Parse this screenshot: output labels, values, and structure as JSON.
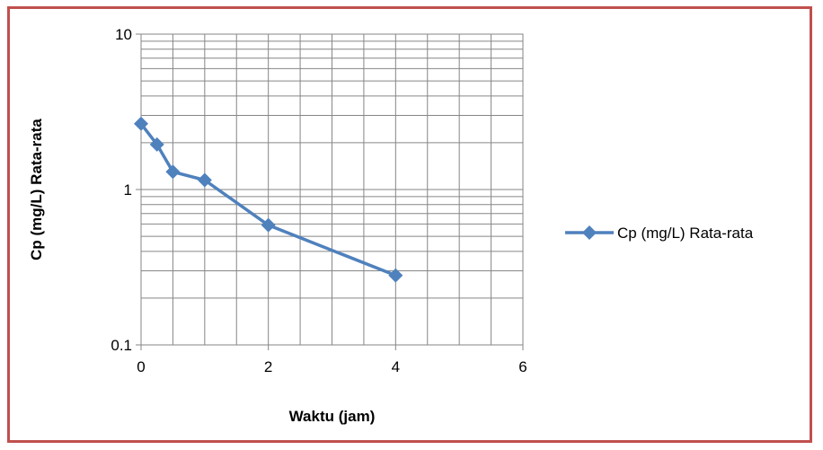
{
  "chart_data": {
    "type": "line",
    "x": [
      0,
      0.25,
      0.5,
      1,
      2,
      4
    ],
    "series": [
      {
        "name": "Cp (mg/L) Rata-rata",
        "values": [
          2.65,
          1.95,
          1.3,
          1.15,
          0.59,
          0.28
        ],
        "color": "#4f81bd"
      }
    ],
    "xlabel": "Waktu (jam)",
    "ylabel": "Cp (mg/L) Rata-rata",
    "xlim": [
      0,
      6
    ],
    "ylim": [
      0.1,
      10
    ],
    "yscale": "log",
    "xticks": [
      "0",
      "2",
      "4",
      "6"
    ],
    "yticks": [
      "10",
      "1",
      "0.1"
    ],
    "grid": true,
    "legend": "right",
    "border_color": "#c0504d"
  }
}
